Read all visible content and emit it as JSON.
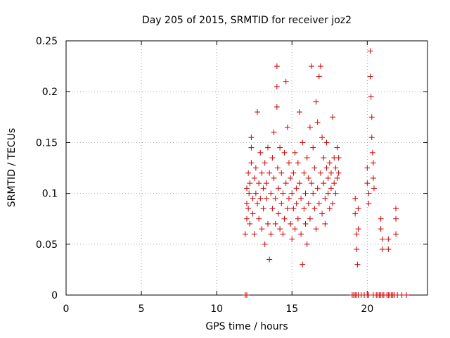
{
  "chart_data": {
    "type": "scatter",
    "title": "Day 205 of 2015, SRMTID for receiver joz2",
    "xlabel": "GPS time / hours",
    "ylabel": "SRMTID / TECUs",
    "xlim": [
      0,
      24
    ],
    "ylim": [
      0,
      0.25
    ],
    "x_ticks": [
      "0",
      "5",
      "10",
      "15",
      "20"
    ],
    "y_ticks": [
      "0",
      "0.05",
      "0.1",
      "0.15",
      "0.2",
      "0.25"
    ],
    "grid": true,
    "marker": "+",
    "color": "#cc0000",
    "series": [
      {
        "points": [
          [
            11.9,
            0.06
          ],
          [
            12.0,
            0.075
          ],
          [
            12.0,
            0.09
          ],
          [
            12.0,
            0.105
          ],
          [
            12.1,
            0.12
          ],
          [
            12.1,
            0.085
          ],
          [
            12.15,
            0.1
          ],
          [
            12.2,
            0.11
          ],
          [
            12.2,
            0.07
          ],
          [
            12.3,
            0.13
          ],
          [
            12.3,
            0.145
          ],
          [
            12.3,
            0.155
          ],
          [
            12.4,
            0.095
          ],
          [
            12.4,
            0.08
          ],
          [
            12.5,
            0.115
          ],
          [
            12.5,
            0.06
          ],
          [
            12.6,
            0.1
          ],
          [
            12.6,
            0.125
          ],
          [
            12.7,
            0.09
          ],
          [
            12.7,
            0.18
          ],
          [
            12.8,
            0.11
          ],
          [
            12.8,
            0.075
          ],
          [
            12.9,
            0.14
          ],
          [
            12.9,
            0.095
          ],
          [
            13.0,
            0.065
          ],
          [
            13.0,
            0.12
          ],
          [
            13.1,
            0.105
          ],
          [
            13.1,
            0.085
          ],
          [
            13.2,
            0.13
          ],
          [
            13.2,
            0.05
          ],
          [
            13.3,
            0.11
          ],
          [
            13.3,
            0.095
          ],
          [
            13.4,
            0.145
          ],
          [
            13.4,
            0.07
          ],
          [
            13.5,
            0.035
          ],
          [
            13.5,
            0.12
          ],
          [
            13.6,
            0.1
          ],
          [
            13.6,
            0.06
          ],
          [
            13.7,
            0.135
          ],
          [
            13.7,
            0.085
          ],
          [
            13.8,
            0.16
          ],
          [
            13.8,
            0.115
          ],
          [
            13.9,
            0.095
          ],
          [
            13.9,
            0.07
          ],
          [
            14.0,
            0.225
          ],
          [
            14.0,
            0.205
          ],
          [
            14.0,
            0.185
          ],
          [
            14.05,
            0.125
          ],
          [
            14.1,
            0.08
          ],
          [
            14.1,
            0.105
          ],
          [
            14.2,
            0.145
          ],
          [
            14.2,
            0.065
          ],
          [
            14.3,
            0.12
          ],
          [
            14.3,
            0.09
          ],
          [
            14.4,
            0.1
          ],
          [
            14.4,
            0.06
          ],
          [
            14.5,
            0.14
          ],
          [
            14.5,
            0.075
          ],
          [
            14.6,
            0.21
          ],
          [
            14.6,
            0.11
          ],
          [
            14.7,
            0.165
          ],
          [
            14.7,
            0.085
          ],
          [
            14.8,
            0.095
          ],
          [
            14.8,
            0.13
          ],
          [
            14.9,
            0.07
          ],
          [
            14.9,
            0.115
          ],
          [
            15.0,
            0.1
          ],
          [
            15.0,
            0.055
          ],
          [
            15.1,
            0.12
          ],
          [
            15.1,
            0.085
          ],
          [
            15.2,
            0.14
          ],
          [
            15.2,
            0.065
          ],
          [
            15.3,
            0.105
          ],
          [
            15.3,
            0.09
          ],
          [
            15.4,
            0.075
          ],
          [
            15.4,
            0.13
          ],
          [
            15.5,
            0.18
          ],
          [
            15.5,
            0.11
          ],
          [
            15.6,
            0.095
          ],
          [
            15.6,
            0.06
          ],
          [
            15.7,
            0.15
          ],
          [
            15.7,
            0.03
          ],
          [
            15.8,
            0.12
          ],
          [
            15.8,
            0.085
          ],
          [
            15.9,
            0.1
          ],
          [
            15.9,
            0.07
          ],
          [
            16.0,
            0.135
          ],
          [
            16.0,
            0.05
          ],
          [
            16.1,
            0.115
          ],
          [
            16.1,
            0.09
          ],
          [
            16.2,
            0.165
          ],
          [
            16.2,
            0.075
          ],
          [
            16.3,
            0.225
          ],
          [
            16.3,
            0.11
          ],
          [
            16.4,
            0.1
          ],
          [
            16.4,
            0.145
          ],
          [
            16.5,
            0.085
          ],
          [
            16.5,
            0.125
          ],
          [
            16.6,
            0.19
          ],
          [
            16.6,
            0.065
          ],
          [
            16.7,
            0.105
          ],
          [
            16.7,
            0.17
          ],
          [
            16.8,
            0.215
          ],
          [
            16.8,
            0.09
          ],
          [
            16.9,
            0.225
          ],
          [
            16.9,
            0.12
          ],
          [
            17.0,
            0.155
          ],
          [
            17.0,
            0.08
          ],
          [
            17.1,
            0.11
          ],
          [
            17.1,
            0.135
          ],
          [
            17.2,
            0.095
          ],
          [
            17.2,
            0.07
          ],
          [
            17.3,
            0.125
          ],
          [
            17.3,
            0.15
          ],
          [
            17.4,
            0.1
          ],
          [
            17.4,
            0.115
          ],
          [
            17.5,
            0.13
          ],
          [
            17.5,
            0.085
          ],
          [
            17.6,
            0.12
          ],
          [
            17.6,
            0.105
          ],
          [
            17.7,
            0.175
          ],
          [
            17.7,
            0.09
          ],
          [
            17.8,
            0.135
          ],
          [
            17.8,
            0.11
          ],
          [
            17.9,
            0.125
          ],
          [
            17.9,
            0.1
          ],
          [
            18.0,
            0.145
          ],
          [
            18.0,
            0.115
          ],
          [
            18.1,
            0.135
          ],
          [
            18.1,
            0.12
          ],
          [
            19.2,
            0.095
          ],
          [
            19.2,
            0.08
          ],
          [
            19.3,
            0.06
          ],
          [
            19.3,
            0.045
          ],
          [
            19.35,
            0.03
          ],
          [
            19.4,
            0.085
          ],
          [
            19.4,
            0.065
          ],
          [
            20.0,
            0.125
          ],
          [
            20.0,
            0.11
          ],
          [
            20.1,
            0.1
          ],
          [
            20.1,
            0.09
          ],
          [
            20.2,
            0.24
          ],
          [
            20.2,
            0.215
          ],
          [
            20.25,
            0.195
          ],
          [
            20.3,
            0.175
          ],
          [
            20.3,
            0.155
          ],
          [
            20.35,
            0.14
          ],
          [
            20.4,
            0.13
          ],
          [
            20.4,
            0.115
          ],
          [
            20.45,
            0.105
          ],
          [
            20.9,
            0.075
          ],
          [
            20.9,
            0.065
          ],
          [
            21.0,
            0.055
          ],
          [
            21.0,
            0.045
          ],
          [
            21.4,
            0.055
          ],
          [
            21.4,
            0.045
          ],
          [
            21.9,
            0.085
          ],
          [
            21.9,
            0.075
          ],
          [
            21.9,
            0.06
          ],
          [
            11.9,
            0
          ],
          [
            12.0,
            0
          ],
          [
            19.0,
            0
          ],
          [
            19.1,
            0
          ],
          [
            19.2,
            0
          ],
          [
            19.3,
            0
          ],
          [
            19.4,
            0
          ],
          [
            19.6,
            0
          ],
          [
            19.8,
            0
          ],
          [
            20.0,
            0
          ],
          [
            20.1,
            0
          ],
          [
            20.4,
            0
          ],
          [
            20.6,
            0
          ],
          [
            20.7,
            0
          ],
          [
            20.8,
            0
          ],
          [
            20.9,
            0
          ],
          [
            21.0,
            0
          ],
          [
            21.1,
            0
          ],
          [
            21.3,
            0
          ],
          [
            21.4,
            0
          ],
          [
            21.5,
            0
          ],
          [
            21.6,
            0
          ],
          [
            21.7,
            0
          ],
          [
            21.8,
            0
          ],
          [
            22.0,
            0
          ],
          [
            22.3,
            0
          ],
          [
            22.6,
            0
          ]
        ]
      }
    ]
  }
}
